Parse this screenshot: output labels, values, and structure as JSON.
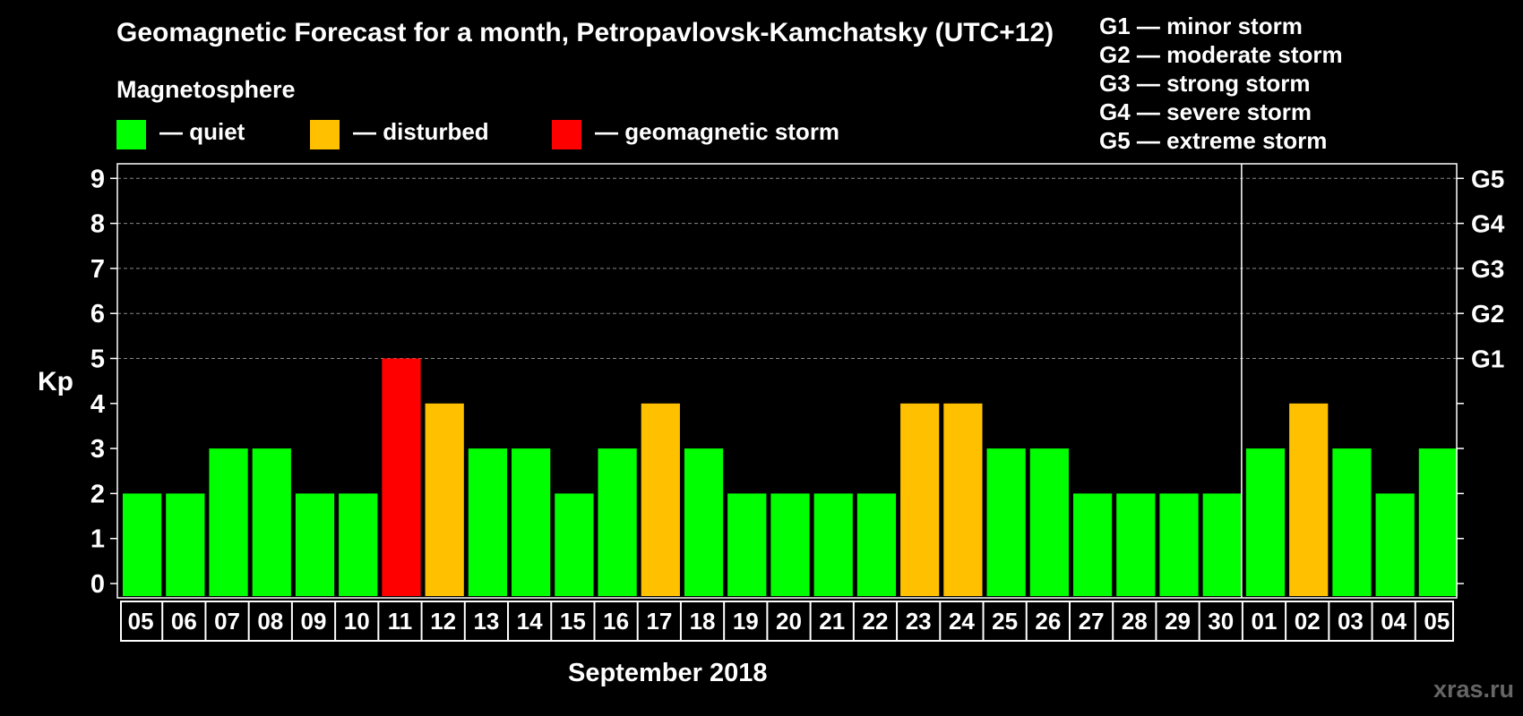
{
  "title": "Geomagnetic Forecast for a month, Petropavlovsk-Kamchatsky (UTC+12)",
  "legend": {
    "title": "Magnetosphere",
    "items": [
      {
        "label": "— quiet",
        "color": "#00ff00"
      },
      {
        "label": "— disturbed",
        "color": "#ffc000"
      },
      {
        "label": "— geomagnetic storm",
        "color": "#ff0000"
      }
    ]
  },
  "g_scale_legend": [
    "G1 — minor storm",
    "G2 — moderate storm",
    "G3 — strong storm",
    "G4 — severe storm",
    "G5 — extreme storm"
  ],
  "watermark": "xras.ru",
  "chart_data": {
    "type": "bar",
    "categories": [
      "05",
      "06",
      "07",
      "08",
      "09",
      "10",
      "11",
      "12",
      "13",
      "14",
      "15",
      "16",
      "17",
      "18",
      "19",
      "20",
      "21",
      "22",
      "23",
      "24",
      "25",
      "26",
      "27",
      "28",
      "29",
      "30",
      "01",
      "02",
      "03",
      "04",
      "05"
    ],
    "values": [
      2,
      2,
      3,
      3,
      2,
      2,
      5,
      4,
      3,
      3,
      2,
      3,
      4,
      3,
      2,
      2,
      2,
      2,
      4,
      4,
      3,
      3,
      2,
      2,
      2,
      2,
      3,
      4,
      3,
      2,
      3
    ],
    "title": "Geomagnetic Forecast for a month, Petropavlovsk-Kamchatsky (UTC+12)",
    "xlabel": "September 2018",
    "ylabel": "Kp",
    "ylim": [
      0,
      9
    ],
    "yticks": [
      "0",
      "1",
      "2",
      "3",
      "4",
      "5",
      "6",
      "7",
      "8",
      "9"
    ],
    "right_ticks": [
      {
        "kp": 5,
        "label": "G1"
      },
      {
        "kp": 6,
        "label": "G2"
      },
      {
        "kp": 7,
        "label": "G3"
      },
      {
        "kp": 8,
        "label": "G4"
      },
      {
        "kp": 9,
        "label": "G5"
      }
    ],
    "month_divider_after_index": 25,
    "color_levels": {
      "quiet": "#00ff00",
      "disturbed": "#ffc000",
      "storm": "#ff0000"
    },
    "grid": "dashed horizontal lines at Kp 5-9"
  }
}
